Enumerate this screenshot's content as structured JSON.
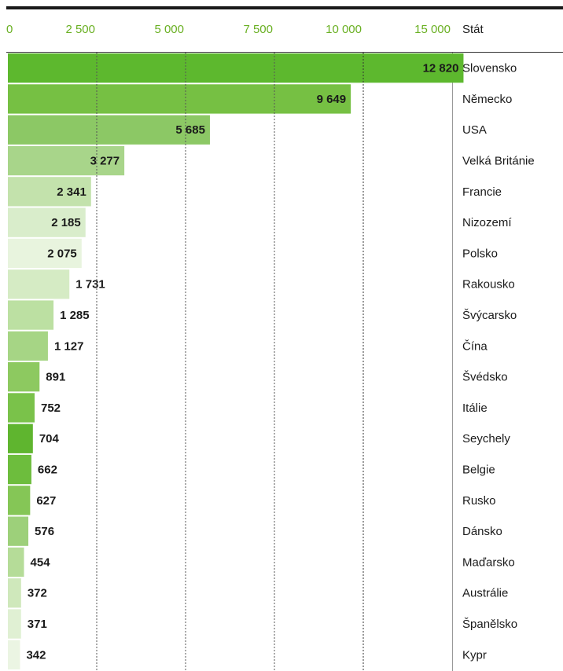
{
  "chart_data": {
    "type": "bar",
    "orientation": "horizontal",
    "category_header": "Stát",
    "categories": [
      "Slovensko",
      "Německo",
      "USA",
      "Velká Británie",
      "Francie",
      "Nizozemí",
      "Polsko",
      "Rakousko",
      "Švýcarsko",
      "Čína",
      "Švédsko",
      "Itálie",
      "Seychely",
      "Belgie",
      "Rusko",
      "Dánsko",
      "Maďarsko",
      "Austrálie",
      "Španělsko",
      "Kypr"
    ],
    "values": [
      12820,
      9649,
      5685,
      3277,
      2341,
      2185,
      2075,
      1731,
      1285,
      1127,
      891,
      752,
      704,
      662,
      627,
      576,
      454,
      372,
      371,
      342
    ],
    "value_labels": [
      "12 820",
      "9 649",
      "5 685",
      "3 277",
      "2 341",
      "2 185",
      "2 075",
      "1 731",
      "1 285",
      "1 127",
      "891",
      "752",
      "704",
      "662",
      "627",
      "576",
      "454",
      "372",
      "371",
      "342"
    ],
    "colors": [
      "#5db82e",
      "#76c043",
      "#8cc865",
      "#a8d58a",
      "#c3e2ac",
      "#d9edcb",
      "#e8f4de",
      "#d5ebc4",
      "#bce0a2",
      "#a6d585",
      "#8dc960",
      "#7ac24a",
      "#5fb52f",
      "#6dbd3d",
      "#85c656",
      "#9dd07a",
      "#b5dc98",
      "#cfe8bb",
      "#e0f0d3",
      "#ebf5e3"
    ],
    "xlim": [
      0,
      12500
    ],
    "xticks": [
      0,
      {
        "value": 2500,
        "label": "2 500"
      },
      {
        "value": 5000,
        "label": "5 000"
      },
      {
        "value": 7500,
        "label": "7 500"
      },
      {
        "value": 10000,
        "label": "10 000"
      },
      {
        "value": 15000,
        "label": "15 000"
      }
    ],
    "grid": true
  }
}
